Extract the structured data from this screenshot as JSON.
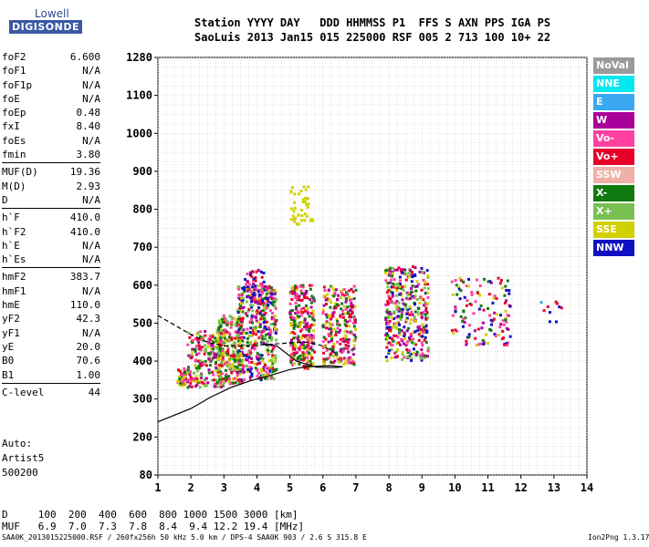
{
  "logo": {
    "line1": "Lowell",
    "line2": "DIGISONDE"
  },
  "header": {
    "row1": "Station YYYY DAY   DDD HHMMSS P1  FFS S AXN PPS IGA PS",
    "row2": "SaoLuis 2013 Jan15 015 225000 RSF 005 2 713 100 10+ 22"
  },
  "params_group1": [
    {
      "label": "foF2",
      "value": "6.600"
    },
    {
      "label": "foF1",
      "value": "N/A"
    },
    {
      "label": "foF1p",
      "value": "N/A"
    },
    {
      "label": "foE",
      "value": "N/A"
    },
    {
      "label": "foEp",
      "value": "0.48"
    },
    {
      "label": "fxI",
      "value": "8.40"
    },
    {
      "label": "foEs",
      "value": "N/A"
    },
    {
      "label": "fmin",
      "value": "3.80"
    }
  ],
  "params_group2": [
    {
      "label": "MUF(D)",
      "value": "19.36"
    },
    {
      "label": "M(D)",
      "value": "2.93"
    },
    {
      "label": "D",
      "value": "N/A"
    }
  ],
  "params_group3": [
    {
      "label": "h`F",
      "value": "410.0"
    },
    {
      "label": "h`F2",
      "value": "410.0"
    },
    {
      "label": "h`E",
      "value": "N/A"
    },
    {
      "label": "h`Es",
      "value": "N/A"
    }
  ],
  "params_group4": [
    {
      "label": "hmF2",
      "value": "383.7"
    },
    {
      "label": "hmF1",
      "value": "N/A"
    },
    {
      "label": "hmE",
      "value": "110.0"
    },
    {
      "label": "yF2",
      "value": "42.3"
    },
    {
      "label": "yF1",
      "value": "N/A"
    },
    {
      "label": "yE",
      "value": "20.0"
    },
    {
      "label": "B0",
      "value": "70.6"
    },
    {
      "label": "B1",
      "value": "1.00"
    }
  ],
  "params_group5": [
    {
      "label": "C-level",
      "value": "44"
    }
  ],
  "auto": {
    "line1": "Auto:",
    "line2": "Artist5",
    "line3": "500200"
  },
  "footer": {
    "d_row": "D     100  200  400  600  800 1000 1500 3000 [km]",
    "muf_row": "MUF   6.9  7.0  7.3  7.8  8.4  9.4 12.2 19.4 [MHz]"
  },
  "bottom": {
    "left": "SAA0K_2013015225000.RSF / 260fx256h 50 kHz 5.0 km / DPS-4 SAA0K 903 / 2.6 S 315.8 E",
    "right": "Ion2Png 1.3.17"
  },
  "legend": [
    {
      "label": "NoVal",
      "color": "#9a9a9a"
    },
    {
      "label": "NNE",
      "color": "#00e8f0"
    },
    {
      "label": "E",
      "color": "#3aa8f0"
    },
    {
      "label": "W",
      "color": "#a8009a"
    },
    {
      "label": "Vo-",
      "color": "#ff40a0"
    },
    {
      "label": "Vo+",
      "color": "#e8002a"
    },
    {
      "label": "SSW",
      "color": "#f0b0a8"
    },
    {
      "label": "X-",
      "color": "#107a10"
    },
    {
      "label": "X+",
      "color": "#78c050"
    },
    {
      "label": "SSE",
      "color": "#d0d000"
    },
    {
      "label": "NNW",
      "color": "#1010c0"
    }
  ],
  "chart_data": {
    "type": "scatter",
    "x_ticks": [
      1,
      2,
      3,
      4,
      5,
      6,
      7,
      8,
      9,
      10,
      11,
      12,
      13,
      14
    ],
    "y_ticks": [
      80,
      200,
      300,
      400,
      500,
      600,
      700,
      800,
      900,
      1000,
      1100,
      1280
    ],
    "xlim": [
      1,
      14
    ],
    "ylim": [
      80,
      1280
    ],
    "grid": true,
    "legend_position": "right",
    "clusters": [
      {
        "x": [
          1.6,
          1.85
        ],
        "y": [
          330,
          380
        ],
        "colors": [
          "#e8002a",
          "#ff40a0",
          "#d0d000",
          "#107a10"
        ],
        "n": 40
      },
      {
        "x": [
          1.9,
          3.0
        ],
        "y": [
          330,
          480
        ],
        "colors": [
          "#e8002a",
          "#ff40a0",
          "#107a10",
          "#78c050",
          "#d0d000",
          "#a8009a"
        ],
        "n": 220
      },
      {
        "x": [
          2.8,
          3.6
        ],
        "y": [
          340,
          520
        ],
        "colors": [
          "#107a10",
          "#78c050",
          "#e8002a",
          "#ff40a0",
          "#d0d000"
        ],
        "n": 260
      },
      {
        "x": [
          3.4,
          4.6
        ],
        "y": [
          350,
          600
        ],
        "colors": [
          "#ff40a0",
          "#e8002a",
          "#a8009a",
          "#107a10",
          "#d0d000",
          "#78c050",
          "#1010c0"
        ],
        "n": 420
      },
      {
        "x": [
          3.6,
          4.3
        ],
        "y": [
          550,
          640
        ],
        "colors": [
          "#a8009a",
          "#1010c0",
          "#e8002a",
          "#ff40a0"
        ],
        "n": 60
      },
      {
        "x": [
          5.0,
          5.75
        ],
        "y": [
          380,
          600
        ],
        "colors": [
          "#ff40a0",
          "#e8002a",
          "#d0d000",
          "#a8009a",
          "#107a10"
        ],
        "n": 260
      },
      {
        "x": [
          5.0,
          5.7
        ],
        "y": [
          760,
          860
        ],
        "colors": [
          "#d0d000"
        ],
        "n": 40
      },
      {
        "x": [
          6.0,
          7.0
        ],
        "y": [
          390,
          600
        ],
        "colors": [
          "#e8002a",
          "#ff40a0",
          "#d0d000",
          "#a8009a",
          "#107a10"
        ],
        "n": 240
      },
      {
        "x": [
          7.9,
          9.2
        ],
        "y": [
          400,
          650
        ],
        "colors": [
          "#e8002a",
          "#ff40a0",
          "#a8009a",
          "#107a10",
          "#d0d000",
          "#1010c0",
          "#78c050"
        ],
        "n": 380
      },
      {
        "x": [
          9.9,
          11.7
        ],
        "y": [
          440,
          620
        ],
        "colors": [
          "#e8002a",
          "#ff40a0",
          "#a8009a",
          "#d0d000",
          "#107a10",
          "#1010c0"
        ],
        "n": 130
      },
      {
        "x": [
          12.6,
          13.3
        ],
        "y": [
          500,
          560
        ],
        "colors": [
          "#3aa8f0",
          "#1010c0",
          "#e8002a"
        ],
        "n": 10
      }
    ],
    "curves": [
      {
        "style": "solid",
        "x": [
          1.0,
          2.0,
          2.6,
          3.2,
          3.8,
          4.4,
          5.0,
          5.5,
          6.2,
          6.6,
          6.4,
          5.8,
          5.2,
          4.6,
          4.2
        ],
        "y": [
          240,
          275,
          305,
          330,
          348,
          362,
          378,
          385,
          388,
          385,
          383,
          384,
          400,
          440,
          445
        ]
      },
      {
        "style": "dashed",
        "x": [
          1.0,
          1.5,
          2.0,
          2.5,
          3.0,
          3.5,
          4.0,
          4.5,
          5.0,
          5.5,
          6.0,
          6.4
        ],
        "y": [
          520,
          495,
          470,
          450,
          440,
          440,
          442,
          445,
          448,
          450,
          440,
          420
        ]
      }
    ]
  }
}
